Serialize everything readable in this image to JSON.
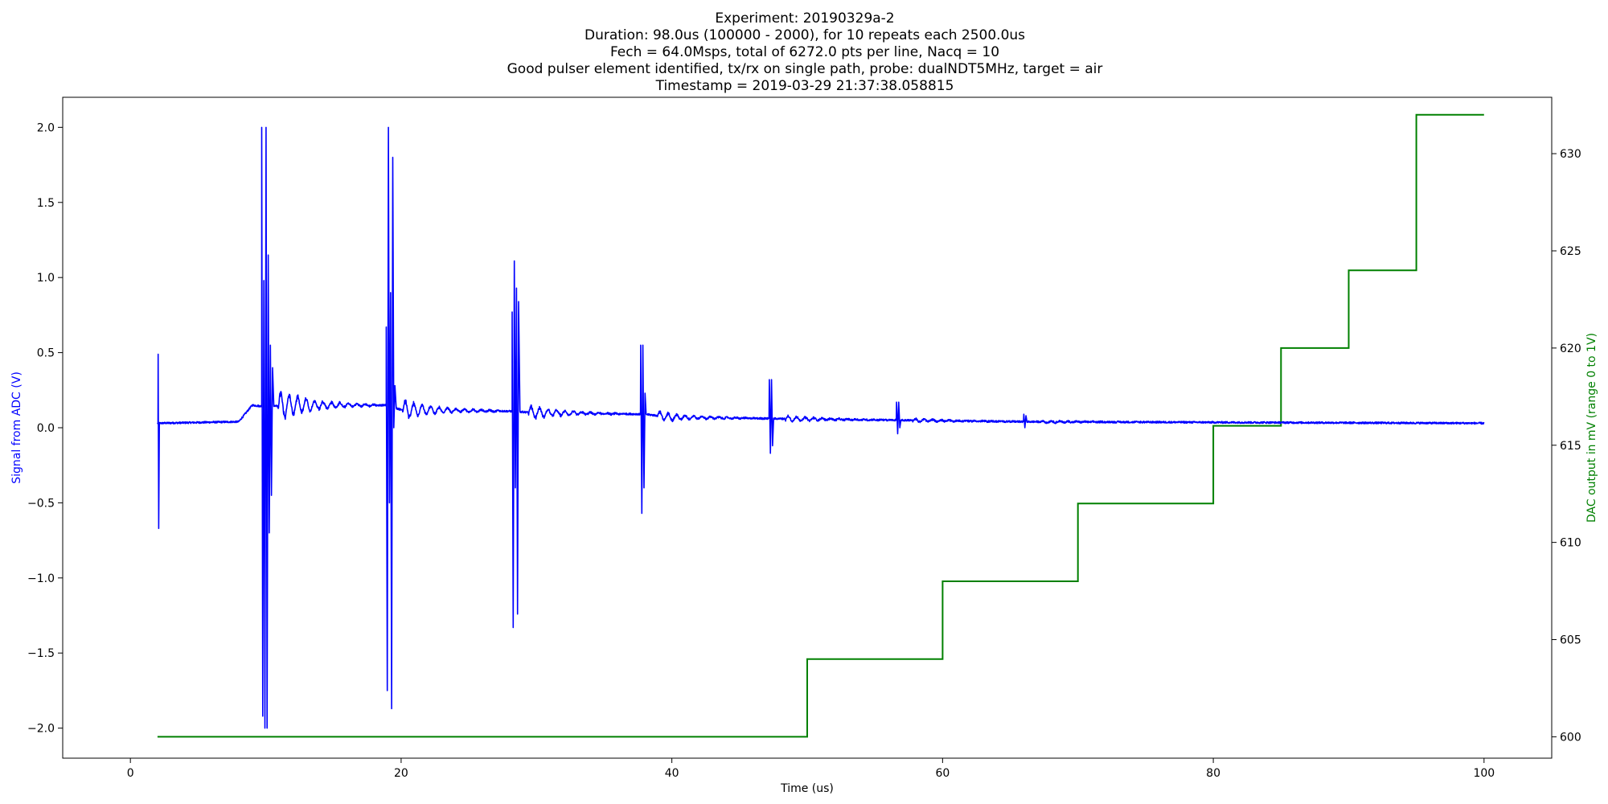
{
  "chart_data": {
    "type": "line",
    "title_lines": [
      "Experiment: 20190329a-2",
      "Duration: 98.0us (100000 - 2000), for 10 repeats each 2500.0us",
      "Fech = 64.0Msps, total of 6272.0 pts per line, Nacq = 10",
      "Good pulser element identified, tx/rx on single path, probe: dualNDT5MHz, target = air",
      "Timestamp = 2019-03-29 21:37:38.058815"
    ],
    "xlabel": "Time (us)",
    "ylabel_left": "Signal from ADC (V)",
    "ylabel_right": "DAC output in mV (range 0 to 1V)",
    "xlim": [
      -5,
      105
    ],
    "ylim_left": [
      -2.2,
      2.2
    ],
    "ylim_right": [
      598.9,
      632.9
    ],
    "x_ticks": [
      0,
      20,
      40,
      60,
      80,
      100
    ],
    "y_ticks_left": [
      -2.0,
      -1.5,
      -1.0,
      -0.5,
      0.0,
      0.5,
      1.0,
      1.5,
      2.0
    ],
    "y_ticks_right": [
      600,
      605,
      610,
      615,
      620,
      625,
      630
    ],
    "grid": false,
    "colors": {
      "signal": "#0000ff",
      "dac": "#008000",
      "left_label": "#0000ff",
      "right_label": "#008000"
    },
    "series": [
      {
        "axis": "left",
        "baseline": [
          [
            2.0,
            0.03
          ],
          [
            8.0,
            0.04
          ],
          [
            9.0,
            0.15
          ],
          [
            10.0,
            0.14
          ],
          [
            12.0,
            0.15
          ],
          [
            19.0,
            0.15
          ],
          [
            20.0,
            0.12
          ],
          [
            28.0,
            0.11
          ],
          [
            30.0,
            0.1
          ],
          [
            38.0,
            0.09
          ],
          [
            40.0,
            0.07
          ],
          [
            48.0,
            0.06
          ],
          [
            57.0,
            0.05
          ],
          [
            66.0,
            0.04
          ],
          [
            100.0,
            0.03
          ]
        ],
        "echoes": [
          {
            "t": 9.7,
            "peaks": [
              2.0,
              -1.92,
              0.98,
              -2.0,
              2.0,
              -2.0,
              1.15,
              -0.7,
              0.55,
              -0.45,
              0.4
            ]
          },
          {
            "t": 18.9,
            "peaks": [
              0.67,
              -1.75,
              2.0,
              -0.5,
              0.9,
              -1.87,
              1.8,
              0.0,
              0.28
            ]
          },
          {
            "t": 28.2,
            "peaks": [
              0.77,
              -1.33,
              1.11,
              -0.4,
              0.93,
              -1.24,
              0.84
            ]
          },
          {
            "t": 37.7,
            "peaks": [
              0.55,
              -0.57,
              0.55,
              -0.4,
              0.23
            ]
          },
          {
            "t": 47.2,
            "peaks": [
              0.32,
              -0.17,
              0.32,
              -0.12
            ]
          },
          {
            "t": 56.6,
            "peaks": [
              0.17,
              -0.04,
              0.17,
              0.0
            ]
          },
          {
            "t": 66.0,
            "peaks": [
              0.09,
              0.0,
              0.08
            ]
          }
        ],
        "start_spike": [
          0.49,
          -0.67
        ]
      },
      {
        "axis": "right",
        "steps": [
          [
            2,
            600
          ],
          [
            50,
            604
          ],
          [
            60,
            608
          ],
          [
            70,
            612
          ],
          [
            80,
            616
          ],
          [
            85,
            620
          ],
          [
            90,
            624
          ],
          [
            95,
            632
          ],
          [
            100,
            632
          ]
        ]
      }
    ]
  }
}
